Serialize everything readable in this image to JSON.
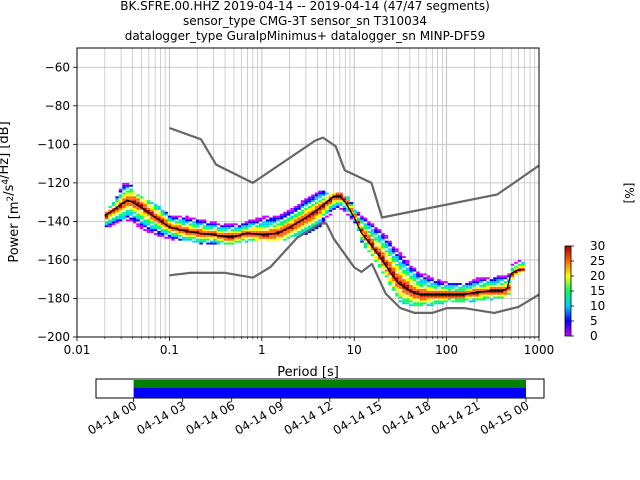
{
  "header": {
    "line1": "BK.SFRE.00.HHZ   2019-04-14 -- 2019-04-14  (47/47 segments)",
    "line2": "sensor_type CMG-3T sensor_sn T310034",
    "line3": "datalogger_type GuralpMinimus+ datalogger_sn MINP-DF59"
  },
  "chart_data": [
    {
      "type": "heatmap",
      "title": "BK.SFRE.00.HHZ   2019-04-14 -- 2019-04-14  (47/47 segments)",
      "xlabel": "Period [s]",
      "ylabel": "Power [m²/s⁴/Hz] [dB]",
      "xscale": "log",
      "xlim": [
        0.01,
        1000
      ],
      "ylim": [
        -200,
        -50
      ],
      "grid": true,
      "xticks": [
        {
          "value": 0.01,
          "label": "0.01"
        },
        {
          "value": 0.1,
          "label": "0.1"
        },
        {
          "value": 1,
          "label": "1"
        },
        {
          "value": 10,
          "label": "10"
        },
        {
          "value": 100,
          "label": "100"
        },
        {
          "value": 1000,
          "label": "1000"
        }
      ],
      "yticks": [
        -60,
        -80,
        -100,
        -120,
        -140,
        -160,
        -180,
        -200
      ],
      "colorbar": {
        "label": "[%]",
        "min": 0,
        "max": 30,
        "ticks": [
          0,
          5,
          10,
          15,
          20,
          25,
          30
        ],
        "colors": [
          "#ffffff",
          "#cc00ff",
          "#0000ff",
          "#00ccff",
          "#00ff66",
          "#ffff00",
          "#ff6600",
          "#aa0000"
        ]
      },
      "series": [
        {
          "name": "",
          "role": "noise_model_high",
          "color": "#666666",
          "x": [
            0.1,
            0.22,
            0.32,
            0.8,
            3.8,
            4.6,
            6.3,
            7.9,
            15.4,
            20,
            354.8,
            1000
          ],
          "y": [
            -91.5,
            -97.4,
            -110.5,
            -120,
            -98,
            -96.5,
            -101,
            -113.5,
            -120,
            -138,
            -126,
            -111
          ]
        },
        {
          "name": "",
          "role": "noise_model_low",
          "color": "#666666",
          "x": [
            0.1,
            0.17,
            0.4,
            0.8,
            1.24,
            2.4,
            4.3,
            5.0,
            6.0,
            10,
            12,
            15.6,
            21.9,
            31.6,
            45,
            70,
            101,
            154,
            328,
            600,
            1000
          ],
          "y": [
            -168,
            -166.7,
            -166.7,
            -169.2,
            -163.7,
            -148.6,
            -141.1,
            -141.1,
            -149.0,
            -163.8,
            -166.2,
            -162.1,
            -177.5,
            -185.0,
            -187.5,
            -187.5,
            -185.0,
            -185.0,
            -187.5,
            -184.4,
            -178.0
          ]
        },
        {
          "name": "",
          "role": "mode",
          "color": "#000000",
          "x": [
            0.02,
            0.025,
            0.03,
            0.035,
            0.04,
            0.05,
            0.07,
            0.1,
            0.15,
            0.2,
            0.3,
            0.4,
            0.5,
            0.7,
            1,
            1.5,
            2,
            3,
            4,
            5,
            6,
            7,
            8,
            10,
            12,
            15,
            20,
            25,
            30,
            40,
            50,
            70,
            100,
            150,
            200,
            300,
            400,
            450,
            500,
            600,
            700
          ],
          "y": [
            -137,
            -134,
            -131,
            -129,
            -130,
            -133,
            -138,
            -143,
            -145,
            -146,
            -147,
            -148,
            -148,
            -146,
            -147,
            -146,
            -143,
            -138,
            -134,
            -130,
            -127,
            -127,
            -130,
            -138,
            -146,
            -152,
            -160,
            -167,
            -172,
            -176,
            -178,
            -178,
            -178,
            -178,
            -177,
            -176,
            -176,
            -175,
            -167,
            -165,
            -165
          ]
        }
      ],
      "heatmap_bands": [
        {
          "x": [
            0.02,
            0.025,
            0.03,
            0.035,
            0.04,
            0.05,
            0.07,
            0.1,
            0.15,
            0.2,
            0.3,
            0.4,
            0.5,
            0.7,
            1,
            1.5,
            2,
            3,
            4,
            5,
            6,
            7,
            8,
            10,
            12,
            15,
            20,
            25,
            30,
            40,
            50,
            70,
            100,
            150,
            200,
            300,
            400,
            450,
            500,
            600,
            700
          ],
          "upper": [
            -134,
            -130,
            -120,
            -120,
            -125,
            -128,
            -132,
            -137,
            -138,
            -139,
            -141,
            -141,
            -142,
            -140,
            -138,
            -137,
            -134,
            -128,
            -124,
            -126,
            -125,
            -125,
            -127,
            -134,
            -138,
            -141,
            -146,
            -152,
            -156,
            -163,
            -167,
            -170,
            -172,
            -172,
            -170,
            -169,
            -168,
            -168,
            -162,
            -160,
            -160
          ],
          "lower": [
            -143,
            -141,
            -140,
            -139,
            -141,
            -144,
            -147,
            -149,
            -150,
            -151,
            -152,
            -152,
            -151,
            -150,
            -150,
            -150,
            -148,
            -146,
            -144,
            -137,
            -134,
            -133,
            -136,
            -141,
            -152,
            -158,
            -167,
            -175,
            -181,
            -184,
            -184,
            -183,
            -182,
            -182,
            -181,
            -180,
            -179,
            -178,
            -168,
            -166,
            -166
          ]
        }
      ]
    },
    {
      "type": "timeline",
      "xlabel": "",
      "ticks": [
        "04-14 00",
        "04-14 03",
        "04-14 06",
        "04-14 09",
        "04-14 12",
        "04-14 15",
        "04-14 18",
        "04-14 21",
        "04-15 00"
      ],
      "xlim_hours": [
        -2.3,
        25.1
      ],
      "bars": [
        {
          "color": "#008000",
          "start_hour": 0,
          "end_hour": 24
        },
        {
          "color": "#0000ff",
          "start_hour": 0,
          "end_hour": 24
        }
      ]
    }
  ]
}
